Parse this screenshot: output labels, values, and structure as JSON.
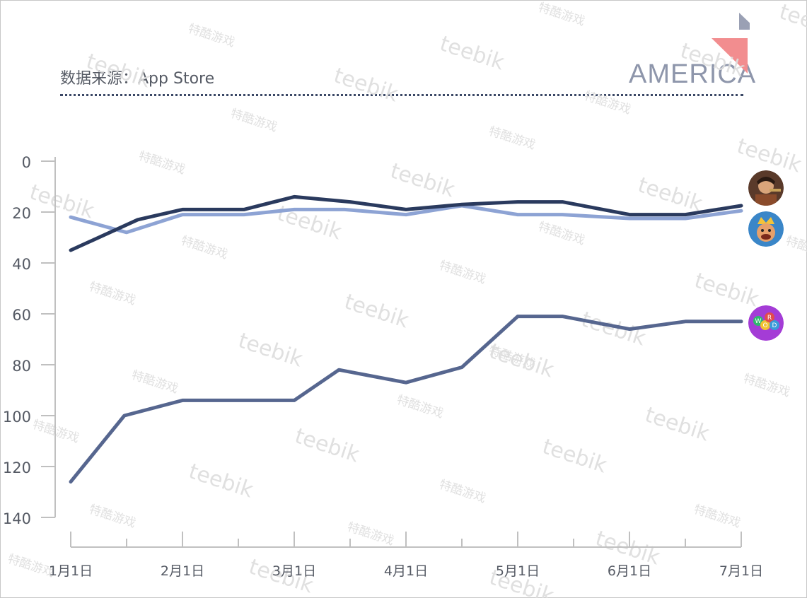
{
  "header": {
    "source_label": "数据来源：App Store",
    "region": "AMERICA"
  },
  "watermarks": {
    "brand": "teebik",
    "cn": "特酷游戏"
  },
  "colors": {
    "series_dark": "#2a3a5e",
    "series_light": "#8da3d4",
    "series_mid": "#56668f",
    "axis": "#c0c0c0",
    "corner_gray": "#9aa0b4",
    "corner_pink": "#f28d8f"
  },
  "chart_data": {
    "type": "line",
    "title": "",
    "xlabel": "",
    "ylabel": "",
    "y_inverted": true,
    "ylim": [
      0,
      140
    ],
    "yticks": [
      "0",
      "20",
      "40",
      "60",
      "80",
      "100",
      "120",
      "140"
    ],
    "x_ticks": [
      "1月1日",
      "2月1日",
      "3月1日",
      "4月1日",
      "5月1日",
      "6月1日",
      "7月1日"
    ],
    "x_range": [
      0,
      6
    ],
    "series": [
      {
        "name": "game-dark",
        "color": "#2a3a5e",
        "icon": "warrior-icon",
        "x": [
          0,
          0.6,
          1.0,
          1.55,
          2.0,
          2.5,
          3.0,
          3.5,
          4.0,
          4.4,
          5.0,
          5.5,
          6.0
        ],
        "values": [
          35,
          23,
          19,
          19,
          14,
          16,
          19,
          17,
          16,
          16,
          21,
          21,
          17.5
        ]
      },
      {
        "name": "game-light",
        "color": "#8da3d4",
        "icon": "king-icon",
        "x": [
          0,
          0.5,
          1.0,
          1.55,
          2.0,
          2.45,
          3.0,
          3.5,
          4.0,
          4.4,
          5.0,
          5.5,
          6.0
        ],
        "values": [
          22,
          28,
          21,
          21,
          19,
          19,
          21,
          17.5,
          21,
          21,
          22.5,
          22.5,
          19.5
        ]
      },
      {
        "name": "game-word",
        "color": "#56668f",
        "icon": "word-icon",
        "x": [
          0,
          0.48,
          1.0,
          1.55,
          2.0,
          2.4,
          3.0,
          3.5,
          4.0,
          4.4,
          5.0,
          5.5,
          6.0
        ],
        "values": [
          126,
          100,
          94,
          94,
          94,
          82,
          87,
          81,
          61,
          61,
          66,
          63,
          63
        ]
      }
    ]
  }
}
